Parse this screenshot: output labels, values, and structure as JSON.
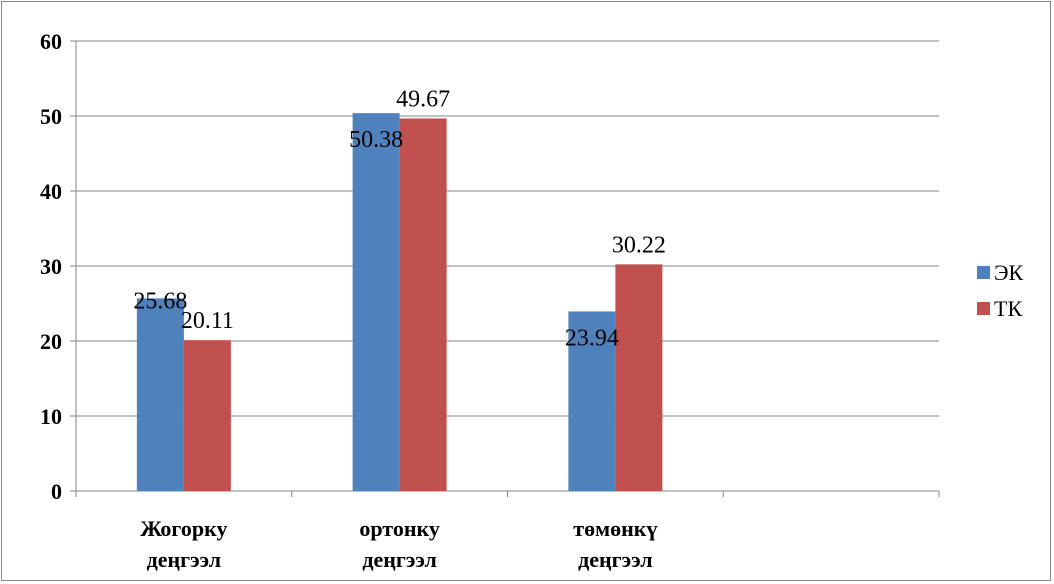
{
  "chart_data": {
    "type": "bar",
    "categories": [
      [
        "Жогорку",
        "деңгээл"
      ],
      [
        "ортонку",
        "деңгээл"
      ],
      [
        "төмөнкү",
        "деңгээл"
      ],
      [
        "",
        ""
      ]
    ],
    "series": [
      {
        "name": "ЭК",
        "values": [
          25.68,
          50.38,
          23.94,
          null
        ],
        "labels": [
          "25.68",
          "50.38",
          "23.94",
          ""
        ]
      },
      {
        "name": "ТК",
        "values": [
          20.11,
          49.67,
          30.22,
          null
        ],
        "labels": [
          "20.11",
          "49.67",
          "30.22",
          ""
        ]
      }
    ],
    "yticks": [
      "0",
      "10",
      "20",
      "30",
      "40",
      "50",
      "60"
    ],
    "ylim": [
      0,
      60
    ],
    "grid": true,
    "legend_position": "right",
    "colors": {
      "series": [
        "#4f81bd",
        "#c0504d"
      ],
      "grid": "#868686",
      "axis": "#868686"
    }
  }
}
